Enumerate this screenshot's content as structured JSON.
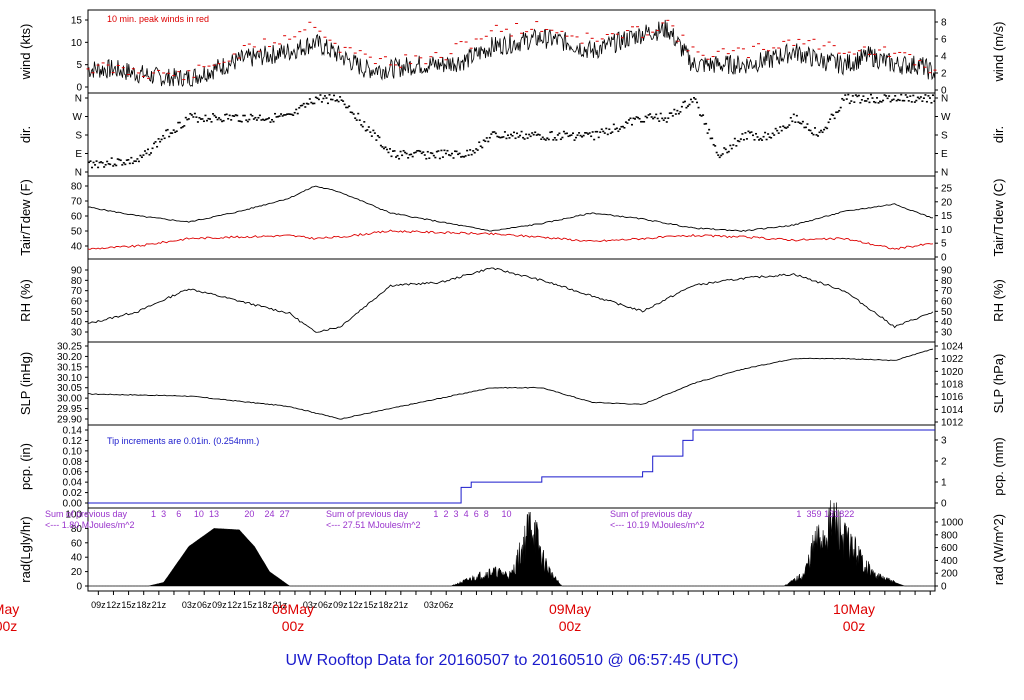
{
  "title": "UW Rooftop Data for 20160507  to  20160510 @ 06:57:45  (UTC)",
  "x_tick_labels": [
    "09z",
    "12z",
    "15z",
    "18z",
    "21z",
    "03z",
    "06z",
    "09z",
    "12z",
    "15z",
    "18z",
    "21z",
    "03z",
    "06z",
    "09z",
    "12z",
    "15z",
    "18z",
    "21z",
    "03z",
    "06z"
  ],
  "day_labels": [
    {
      "day": "May",
      "hour": "00z"
    },
    {
      "day": "08May",
      "hour": "00z"
    },
    {
      "day": "09May",
      "hour": "00z"
    },
    {
      "day": "10May",
      "hour": "00z"
    }
  ],
  "colors": {
    "black": "#000000",
    "red": "#dd0000",
    "blue": "#1a1acc",
    "purple": "#9933cc"
  },
  "panels": {
    "wind": {
      "ylabel_left": "wind (kts)",
      "ylabel_right": "wind (m/s)",
      "note": "10 min. peak winds in red",
      "left_ticks": [
        "15",
        "10",
        "5",
        "0"
      ],
      "right_ticks": [
        "8",
        "6",
        "4",
        "2",
        "0"
      ]
    },
    "dir": {
      "ylabel_left": "dir.",
      "ylabel_right": "dir.",
      "ticks": [
        "N",
        "W",
        "S",
        "E",
        "N"
      ]
    },
    "temp": {
      "ylabel_left": "Tair/Tdew (F)",
      "ylabel_right": "Tair/Tdew (C)",
      "left_ticks": [
        "80",
        "70",
        "60",
        "50",
        "40"
      ],
      "right_ticks": [
        "25",
        "20",
        "15",
        "10",
        "5",
        "0"
      ]
    },
    "rh": {
      "ylabel_left": "RH (%)",
      "ylabel_right": "RH (%)",
      "ticks": [
        "90",
        "80",
        "70",
        "60",
        "50",
        "40",
        "30"
      ]
    },
    "slp": {
      "ylabel_left": "SLP (inHg)",
      "ylabel_right": "SLP (hPa)",
      "left_ticks": [
        "30.25",
        "30.20",
        "30.15",
        "30.10",
        "30.05",
        "30.00",
        "29.95",
        "29.90"
      ],
      "right_ticks": [
        "1024",
        "1022",
        "1020",
        "1018",
        "1016",
        "1014",
        "1012"
      ]
    },
    "pcp": {
      "ylabel_left": "pcp. (in)",
      "ylabel_right": "pcp. (mm)",
      "note": "Tip increments are 0.01in. (0.254mm.)",
      "left_ticks": [
        "0.14",
        "0.12",
        "0.10",
        "0.08",
        "0.06",
        "0.04",
        "0.02",
        "0.00"
      ],
      "right_ticks": [
        "3",
        "2",
        "1",
        "0"
      ]
    },
    "rad": {
      "ylabel_left": "rad(Lgly/hr)",
      "ylabel_right": "rad (W/m^2)",
      "left_ticks": [
        "100",
        "80",
        "60",
        "40",
        "20",
        "0"
      ],
      "right_ticks": [
        "1000",
        "800",
        "600",
        "400",
        "200",
        "0"
      ],
      "day_sums": [
        {
          "line1": "Sum of previous day",
          "line2": "<--- 1.80 MJoules/m^2"
        },
        {
          "line1": "Sum of previous day",
          "line2": "<--- 27.51 MJoules/m^2"
        },
        {
          "line1": "Sum of previous day",
          "line2": "<--- 10.19 MJoules/m^2"
        }
      ],
      "hour_marks": [
        {
          "label": "1",
          "hour": 13
        },
        {
          "label": "3",
          "hour": 15
        },
        {
          "label": "6",
          "hour": 18
        },
        {
          "label": "10",
          "hour": 22
        },
        {
          "label": "13",
          "hour": 25
        },
        {
          "label": "20",
          "hour": 32
        },
        {
          "label": "24",
          "hour": 36
        },
        {
          "label": "27",
          "hour": 39
        },
        {
          "label": "1",
          "hour": 69
        },
        {
          "label": "2",
          "hour": 71
        },
        {
          "label": "3",
          "hour": 73
        },
        {
          "label": "4",
          "hour": 75
        },
        {
          "label": "6",
          "hour": 77
        },
        {
          "label": "8",
          "hour": 79
        },
        {
          "label": "10",
          "hour": 83
        },
        {
          "label": "1",
          "hour": 141
        },
        {
          "label": "3",
          "hour": 143
        },
        {
          "label": "5",
          "hour": 144
        },
        {
          "label": "9",
          "hour": 145
        },
        {
          "label": "13",
          "hour": 147
        },
        {
          "label": "18",
          "hour": 149
        },
        {
          "label": "22",
          "hour": 151
        }
      ]
    }
  },
  "chart_data": {
    "type": "line",
    "x_unit": "hours since 20160507 06:57 UTC",
    "series": [
      {
        "name": "wind (kts)",
        "x": [
          0,
          5,
          10,
          15,
          20,
          25,
          30,
          35,
          40,
          45,
          50,
          55,
          60,
          65,
          70,
          75,
          80,
          85,
          90,
          95,
          100,
          105,
          110,
          115,
          120,
          125,
          130,
          135,
          140,
          145,
          150,
          155,
          160,
          165,
          168
        ],
        "y": [
          4,
          4,
          3,
          2,
          2,
          4,
          6,
          7,
          8,
          10,
          7,
          4,
          4,
          5,
          5,
          6,
          9,
          10,
          11,
          10,
          8,
          10,
          12,
          13,
          5,
          5,
          5,
          6,
          8,
          6,
          5,
          7,
          5,
          5,
          3
        ]
      },
      {
        "name": "10 min. peak winds",
        "x": [
          0,
          10,
          20,
          30,
          40,
          45,
          50,
          60,
          70,
          80,
          90,
          100,
          110,
          115,
          120,
          130,
          140,
          150,
          160,
          168
        ],
        "y": [
          6,
          5,
          4,
          9,
          13,
          16,
          10,
          7,
          8,
          14,
          15,
          12,
          14,
          16,
          9,
          9,
          12,
          10,
          9,
          5
        ]
      },
      {
        "name": "Tair (F)",
        "x": [
          0,
          10,
          20,
          30,
          40,
          45,
          50,
          60,
          70,
          80,
          90,
          100,
          110,
          120,
          130,
          140,
          150,
          160,
          168
        ],
        "y": [
          66,
          60,
          56,
          63,
          72,
          80,
          76,
          62,
          56,
          50,
          55,
          62,
          58,
          52,
          50,
          54,
          63,
          68,
          58
        ]
      },
      {
        "name": "Tdew (F)",
        "x": [
          0,
          10,
          20,
          30,
          40,
          45,
          50,
          60,
          70,
          80,
          90,
          100,
          110,
          120,
          130,
          140,
          150,
          160,
          168
        ],
        "y": [
          38,
          40,
          45,
          46,
          47,
          45,
          46,
          50,
          49,
          48,
          46,
          43,
          45,
          47,
          46,
          44,
          45,
          38,
          42
        ]
      },
      {
        "name": "RH (%)",
        "x": [
          0,
          10,
          20,
          30,
          40,
          45,
          50,
          60,
          70,
          80,
          90,
          100,
          110,
          120,
          130,
          140,
          150,
          160,
          168
        ],
        "y": [
          38,
          50,
          72,
          60,
          48,
          30,
          35,
          75,
          78,
          92,
          80,
          65,
          50,
          75,
          82,
          86,
          70,
          35,
          50
        ]
      },
      {
        "name": "SLP (inHg)",
        "x": [
          0,
          20,
          40,
          50,
          60,
          70,
          80,
          90,
          100,
          110,
          120,
          130,
          140,
          150,
          160,
          168
        ],
        "y": [
          30.02,
          30.01,
          29.96,
          29.9,
          29.95,
          30.0,
          30.05,
          30.05,
          29.98,
          29.97,
          30.07,
          30.14,
          30.19,
          30.19,
          30.18,
          30.24
        ]
      },
      {
        "name": "pcp. (in)",
        "x": [
          0,
          72,
          74,
          76,
          88,
          90,
          100,
          110,
          112,
          118,
          120,
          168
        ],
        "y": [
          0,
          0,
          0.03,
          0.04,
          0.04,
          0.05,
          0.05,
          0.06,
          0.09,
          0.12,
          0.14,
          0.14
        ]
      },
      {
        "name": "rad (Lgly/hr)",
        "x": [
          0,
          12,
          15,
          20,
          25,
          30,
          33,
          36,
          40,
          45,
          48,
          72,
          76,
          80,
          84,
          86,
          88,
          90,
          92,
          94,
          96,
          120,
          138,
          142,
          144,
          146,
          148,
          150,
          152,
          154,
          156,
          162,
          164,
          168
        ],
        "y": [
          0,
          0,
          5,
          55,
          80,
          78,
          55,
          20,
          0,
          0,
          0,
          0,
          10,
          20,
          15,
          50,
          90,
          40,
          15,
          0,
          0,
          0,
          0,
          15,
          55,
          70,
          90,
          65,
          50,
          30,
          15,
          0,
          0,
          0
        ]
      }
    ],
    "direction": {
      "series_name": "dir.",
      "categories": [
        "N",
        "E",
        "S",
        "W",
        "N"
      ],
      "x": [
        0,
        10,
        15,
        20,
        30,
        40,
        45,
        50,
        60,
        70,
        75,
        80,
        90,
        100,
        110,
        115,
        120,
        125,
        130,
        135,
        140,
        145,
        150,
        155,
        160,
        168
      ],
      "y": [
        "E",
        "E",
        "S",
        "W",
        "W",
        "W",
        "N",
        "N",
        "E",
        "E",
        "E",
        "S",
        "S",
        "S",
        "W",
        "W",
        "N",
        "E",
        "S",
        "S",
        "W",
        "S",
        "N",
        "N",
        "N",
        "N"
      ]
    }
  }
}
